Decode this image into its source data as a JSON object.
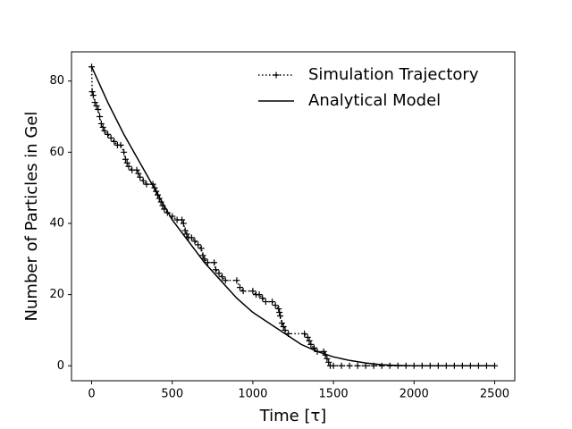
{
  "chart_data": {
    "type": "line",
    "xlabel": "Time [τ]",
    "ylabel": "Number of Particles in Gel",
    "xlim": [
      -125,
      2625
    ],
    "ylim": [
      -4.2,
      88.2
    ],
    "xticks": [
      0,
      500,
      1000,
      1500,
      2000,
      2500
    ],
    "yticks": [
      0,
      20,
      40,
      60,
      80
    ],
    "legend": "upper right",
    "series": [
      {
        "name": "Simulation Trajectory",
        "color": "#000000",
        "style": "dotted",
        "marker": "+",
        "x": [
          0,
          3,
          10,
          20,
          30,
          40,
          50,
          60,
          70,
          80,
          100,
          120,
          140,
          160,
          180,
          200,
          210,
          220,
          230,
          250,
          280,
          290,
          300,
          320,
          340,
          380,
          390,
          400,
          410,
          420,
          430,
          440,
          450,
          470,
          500,
          530,
          560,
          570,
          580,
          590,
          600,
          620,
          640,
          660,
          680,
          690,
          700,
          720,
          760,
          770,
          790,
          810,
          830,
          900,
          920,
          940,
          1000,
          1020,
          1040,
          1060,
          1080,
          1120,
          1140,
          1160,
          1165,
          1170,
          1180,
          1190,
          1200,
          1220,
          1320,
          1340,
          1350,
          1360,
          1380,
          1400,
          1440,
          1450,
          1460,
          1470,
          1480,
          1500,
          1550,
          1600,
          1650,
          1700,
          1750,
          1800,
          1850,
          1900,
          1950,
          2000,
          2050,
          2100,
          2150,
          2200,
          2250,
          2300,
          2350,
          2400,
          2450,
          2500
        ],
        "values": [
          84,
          77,
          76,
          74,
          73,
          72,
          70,
          68,
          67,
          66,
          65,
          64,
          63,
          62,
          62,
          60,
          58,
          57,
          56,
          55,
          55,
          54,
          53,
          52,
          51,
          51,
          50,
          49,
          48,
          47,
          46,
          45,
          44,
          43,
          42,
          41,
          41,
          40,
          38,
          37,
          36,
          36,
          35,
          34,
          33,
          31,
          30,
          29,
          29,
          27,
          26,
          25,
          24,
          24,
          22,
          21,
          21,
          20,
          20,
          19,
          18,
          18,
          17,
          16,
          15,
          14,
          12,
          11,
          10,
          9,
          9,
          8,
          7,
          6,
          5,
          4,
          4,
          3,
          2,
          1,
          0,
          0,
          0,
          0,
          0,
          0,
          0,
          0,
          0,
          0,
          0,
          0,
          0,
          0,
          0,
          0,
          0,
          0,
          0,
          0,
          0,
          0
        ]
      },
      {
        "name": "Analytical Model",
        "color": "#000000",
        "style": "solid",
        "x": [
          0,
          100,
          200,
          300,
          400,
          500,
          600,
          700,
          800,
          900,
          1000,
          1100,
          1200,
          1300,
          1400,
          1500,
          1600,
          1700,
          1800,
          1900,
          2000,
          2100,
          2200,
          2300,
          2400,
          2500
        ],
        "values": [
          84,
          74,
          65,
          57,
          49,
          41,
          35,
          29,
          24,
          19,
          15,
          12,
          9,
          6,
          4,
          2.5,
          1.5,
          0.8,
          0.3,
          0.1,
          0,
          0,
          0,
          0,
          0,
          0
        ]
      }
    ]
  }
}
